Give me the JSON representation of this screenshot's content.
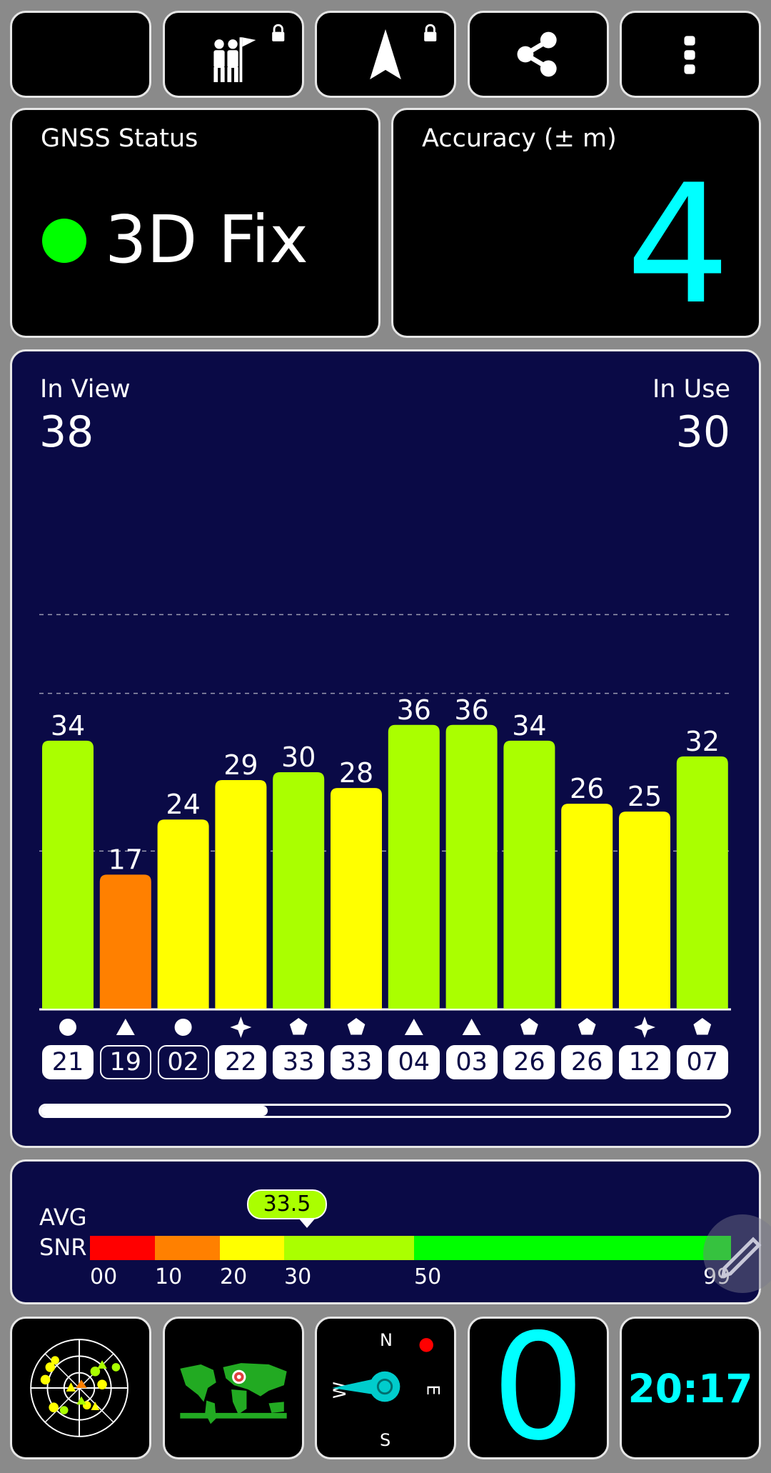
{
  "toolbar": {
    "buttons": [
      {
        "icon": "moon-icon"
      },
      {
        "icon": "person-flag-icon",
        "locked": true
      },
      {
        "icon": "navigation-arrow-icon",
        "locked": true
      },
      {
        "icon": "share-icon"
      },
      {
        "icon": "more-vert-icon"
      }
    ]
  },
  "status": {
    "title": "GNSS Status",
    "fix": "3D Fix",
    "fix_color": "#00ff00"
  },
  "accuracy": {
    "title": "Accuracy (± m)",
    "value": "4",
    "color": "#00ffff"
  },
  "satellites": {
    "in_view_label": "In View",
    "in_view": "38",
    "in_use_label": "In Use",
    "in_use": "30",
    "scroll_position": 0.33
  },
  "chart_data": {
    "type": "bar",
    "ylim": [
      0,
      60
    ],
    "gridlines": [
      20,
      40,
      50
    ],
    "categories": [
      "21",
      "19",
      "02",
      "22",
      "33",
      "33",
      "04",
      "03",
      "26",
      "26",
      "12",
      "07"
    ],
    "values": [
      34,
      17,
      24,
      29,
      30,
      28,
      36,
      36,
      34,
      26,
      25,
      32
    ],
    "constellation_symbols": [
      "circle",
      "triangle",
      "circle",
      "star",
      "pentagon",
      "pentagon",
      "triangle",
      "triangle",
      "pentagon",
      "pentagon",
      "star",
      "pentagon"
    ],
    "chip_style": [
      "filled",
      "outline",
      "outline",
      "filled",
      "filled",
      "filled",
      "filled",
      "filled",
      "filled",
      "filled",
      "filled",
      "filled"
    ],
    "bar_colors": {
      "17": "#ff8000",
      "24": "#ffff00",
      "25": "#ffff00",
      "26": "#ffff00",
      "28": "#ffff00",
      "29": "#ffff00",
      "30+": "#aaff00"
    }
  },
  "snr": {
    "label_line1": "AVG",
    "label_line2": "SNR",
    "value": "33.5",
    "ticks": [
      "00",
      "10",
      "20",
      "30",
      "50",
      "99"
    ],
    "segment_colors": [
      "#ff0000",
      "#ff8000",
      "#ffff00",
      "#aaff00",
      "#00ff00"
    ]
  },
  "bottom": {
    "sky_icon": "sky-plot-icon",
    "map_icon": "world-map-icon",
    "compass": {
      "n": "N",
      "e": "E",
      "s": "S",
      "w": "W"
    },
    "speed": "0",
    "time": "20:17"
  }
}
